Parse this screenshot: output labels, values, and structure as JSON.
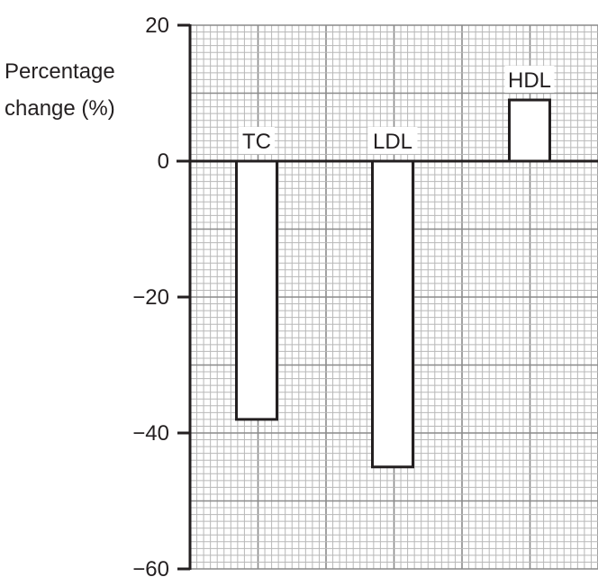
{
  "chart_data": {
    "type": "bar",
    "title": "",
    "xlabel": "",
    "ylabel_lines": [
      "Percentage",
      "change (%)"
    ],
    "categories": [
      "TC",
      "LDL",
      "HDL"
    ],
    "values": [
      -38,
      -45,
      9
    ],
    "ylim": [
      -60,
      20
    ],
    "yticks": [
      20,
      0,
      -20,
      -40,
      -60
    ],
    "ytick_labels": [
      "20",
      "0",
      "−20",
      "−40",
      "−60"
    ],
    "grid": true,
    "legend": "none",
    "colors": {
      "bar_fill": "#ffffff",
      "bar_stroke": "#231f20",
      "axis": "#231f20",
      "grid_minor": "#b8b8b8",
      "grid_major": "#8a8a8a"
    }
  }
}
